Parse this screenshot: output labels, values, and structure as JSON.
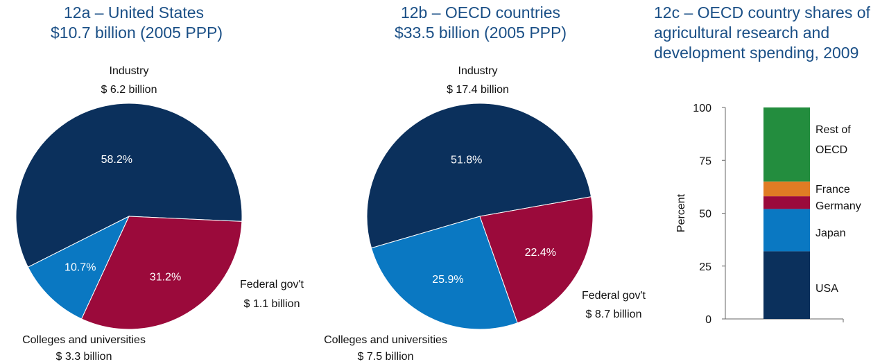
{
  "colors": {
    "industry": "#0b305c",
    "colleges": "#9b0a3b",
    "federal": "#0a78c2",
    "rest_of_oecd": "#238d3e",
    "france": "#e07c24",
    "germany": "#9b0a3b",
    "japan": "#0a78c2",
    "usa": "#0b305c",
    "title": "#1a4f86"
  },
  "chart_data": [
    {
      "type": "pie",
      "title_lines": [
        "12a – United States",
        "$10.7 billion (2005 PPP)"
      ],
      "slices": [
        {
          "label": "Industry",
          "amount": "$ 6.2 billion",
          "value": 58.2,
          "pct_label": "58.2%",
          "color_key": "industry"
        },
        {
          "label": "Federal gov't",
          "amount": "$ 1.1 billion",
          "value": 10.7,
          "pct_label": "10.7%",
          "color_key": "federal"
        },
        {
          "label": "Colleges and universities",
          "amount": "$ 3.3 billion",
          "value": 31.2,
          "pct_label": "31.2%",
          "color_key": "colleges"
        }
      ]
    },
    {
      "type": "pie",
      "title_lines": [
        "12b – OECD countries",
        "$33.5 billion (2005 PPP)"
      ],
      "slices": [
        {
          "label": "Industry",
          "amount": "$ 17.4 billion",
          "value": 51.8,
          "pct_label": "51.8%",
          "color_key": "industry"
        },
        {
          "label": "Federal gov't",
          "amount": "$ 8.7 billion",
          "value": 25.9,
          "pct_label": "25.9%",
          "color_key": "federal"
        },
        {
          "label": "Colleges and universities",
          "amount": "$ 7.5 billion",
          "value": 22.4,
          "pct_label": "22.4%",
          "color_key": "colleges"
        }
      ]
    },
    {
      "type": "bar",
      "stacked": true,
      "title_lines": [
        "12c – OECD country shares of",
        "agricultural research and",
        "development spending, 2009"
      ],
      "ylabel": "Percent",
      "ylim": [
        0,
        100
      ],
      "yticks": [
        0,
        25,
        50,
        75,
        100
      ],
      "series": [
        {
          "name": "USA",
          "value": 32,
          "color_key": "usa"
        },
        {
          "name": "Japan",
          "value": 20,
          "color_key": "japan"
        },
        {
          "name": "Germany",
          "value": 6,
          "color_key": "germany"
        },
        {
          "name": "France",
          "value": 7,
          "color_key": "france"
        },
        {
          "name": "Rest of OECD",
          "value": 35,
          "color_key": "rest_of_oecd"
        }
      ]
    }
  ]
}
